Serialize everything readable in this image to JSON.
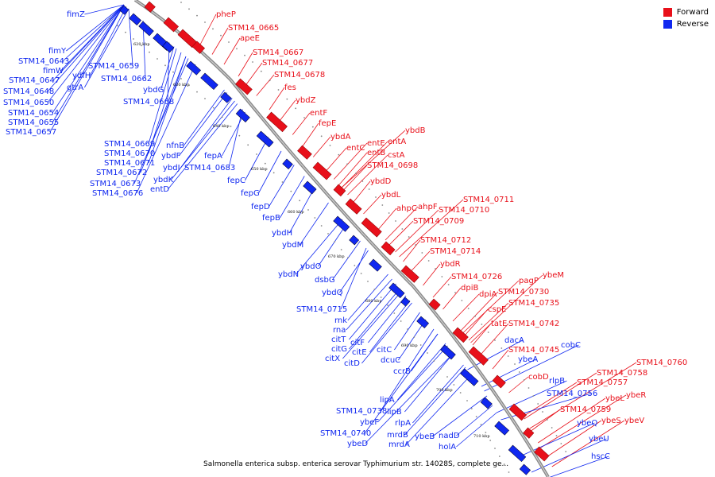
{
  "legend": {
    "forward_label": "Forward",
    "reverse_label": "Reverse",
    "forward_color": "#e8101a",
    "reverse_color": "#1028f0"
  },
  "footer": "Salmonella enterica subsp. enterica serovar Typhimurium str. 14028S, complete ge...",
  "ticks": [
    "620 kbp",
    "630 kbp",
    "640 kbp",
    "650 kbp",
    "660 kbp",
    "670 kbp",
    "680 kbp",
    "690 kbp",
    "700 kbp",
    "710 kbp"
  ],
  "forward_genes": [
    "pheP",
    "STM14_0665",
    "apeE",
    "STM14_0667",
    "STM14_0677",
    "STM14_0678",
    "fes",
    "ybdZ",
    "entF",
    "fepE",
    "ybdB",
    "ybdA",
    "entE",
    "entA",
    "entC",
    "entB",
    "cstA",
    "STM14_0698",
    "ybdD",
    "ybdL",
    "STM14_0711",
    "ahpC",
    "ahpF",
    "STM14_0710",
    "STM14_0709",
    "STM14_0712",
    "STM14_0714",
    "ybdR",
    "STM14_0726",
    "ybeM",
    "pagP",
    "dpiB",
    "STM14_0730",
    "dpiA",
    "cspE",
    "STM14_0735",
    "tatE",
    "STM14_0742",
    "STM14_0745",
    "cobD",
    "STM14_0760",
    "STM14_0758",
    "STM14_0757",
    "ybeR",
    "ybeL",
    "STM14_0759",
    "ybeS",
    "ybeV"
  ],
  "reverse_genes": [
    "fimZ",
    "fimY",
    "STM14_0643",
    "fimW",
    "ydfH",
    "STM14_0659",
    "STM14_0647",
    "gtrA",
    "STM14_0662",
    "STM14_0648",
    "ybdG",
    "STM14_0650",
    "STM14_0668",
    "STM14_0654",
    "STM14_0655",
    "STM14_0657",
    "STM14_0669",
    "nfnB",
    "STM14_0670",
    "ybdF",
    "STM14_0671",
    "ybdJ",
    "fepA",
    "STM14_0683",
    "STM14_0672",
    "ybdK",
    "STM14_0673",
    "entD",
    "STM14_0676",
    "fepC",
    "fepG",
    "fepD",
    "fepB",
    "ybdH",
    "ybdM",
    "ybdO",
    "ybdN",
    "dsbG",
    "ybdQ",
    "STM14_0715",
    "rnk",
    "rna",
    "citT",
    "citF",
    "citG",
    "citE",
    "citX",
    "citD",
    "citC",
    "dcuC",
    "ccrB",
    "dacA",
    "cobC",
    "ybeA",
    "rlpB",
    "STM14_0756",
    "lipA",
    "STM14_0738",
    "lipB",
    "ybeF",
    "rlpA",
    "STM14_0740",
    "mrdB",
    "ybeB",
    "nadD",
    "ybeD",
    "mrdA",
    "holA",
    "ybeQ",
    "ybeU",
    "hscC"
  ]
}
